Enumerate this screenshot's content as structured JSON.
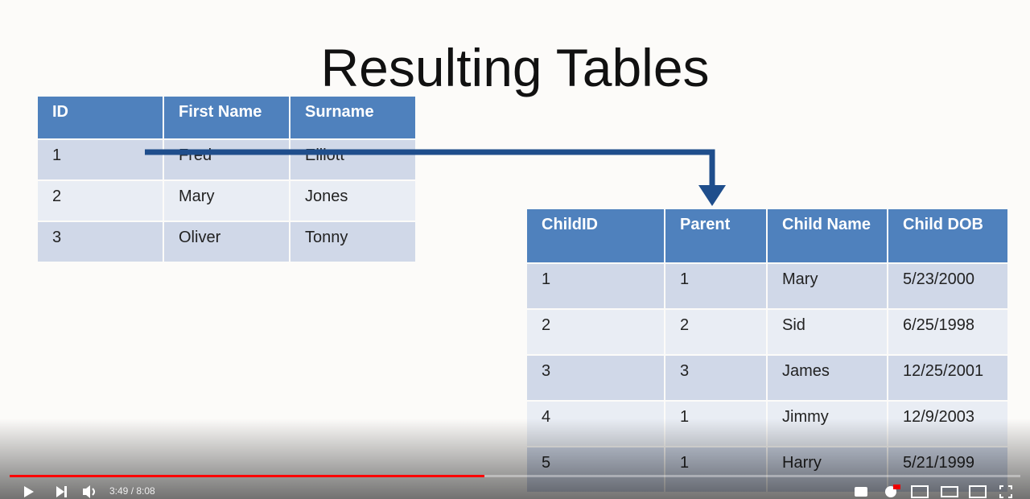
{
  "slide": {
    "title": "Resulting Tables",
    "parents_table": {
      "headers": [
        "ID",
        "First Name",
        "Surname"
      ],
      "rows": [
        [
          "1",
          "Fred",
          "Elliott"
        ],
        [
          "2",
          "Mary",
          "Jones"
        ],
        [
          "3",
          "Oliver",
          "Tonny"
        ]
      ]
    },
    "children_table": {
      "headers": [
        "ChildID",
        "Parent",
        "Child Name",
        "Child DOB"
      ],
      "rows": [
        [
          "1",
          "1",
          "Mary",
          "5/23/2000"
        ],
        [
          "2",
          "2",
          "Sid",
          "6/25/1998"
        ],
        [
          "3",
          "3",
          "James",
          "12/25/2001"
        ],
        [
          "4",
          "1",
          "Jimmy",
          "12/9/2003"
        ],
        [
          "5",
          "1",
          "Harry",
          "5/21/1999"
        ]
      ]
    }
  },
  "player": {
    "time": "3:49 / 8:08"
  }
}
